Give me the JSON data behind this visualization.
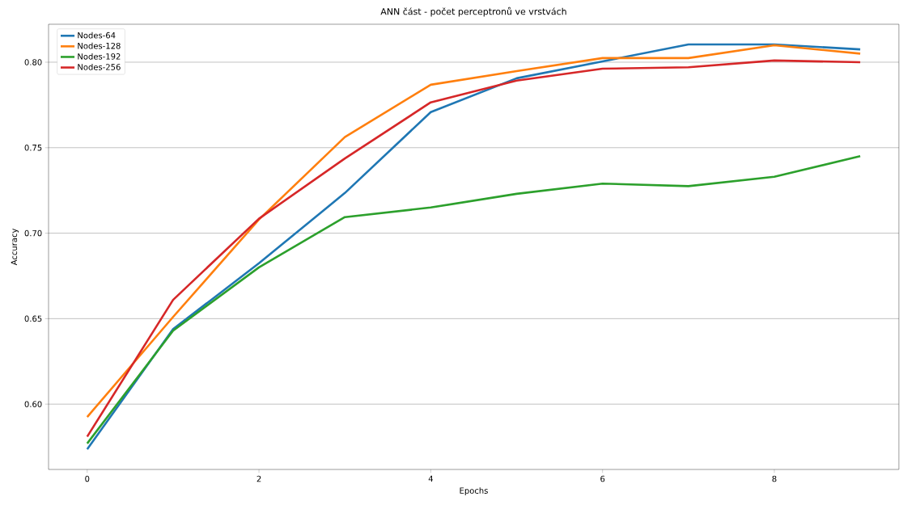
{
  "chart_data": {
    "type": "line",
    "title": "ANN část - počet perceptronů ve vrstvách",
    "xlabel": "Epochs",
    "ylabel": "Accuracy",
    "x": [
      0,
      1,
      2,
      3,
      4,
      5,
      6,
      7,
      8,
      9
    ],
    "series": [
      {
        "name": "Nodes-64",
        "color": "#1f77b4",
        "values": [
          0.5736,
          0.6439,
          0.6824,
          0.7235,
          0.7708,
          0.7906,
          0.8005,
          0.8104,
          0.8104,
          0.8075
        ]
      },
      {
        "name": "Nodes-128",
        "color": "#ff7f0e",
        "values": [
          0.5925,
          0.651,
          0.708,
          0.7562,
          0.7868,
          0.7948,
          0.8024,
          0.8024,
          0.8099,
          0.805
        ]
      },
      {
        "name": "Nodes-192",
        "color": "#2ca02c",
        "values": [
          0.577,
          0.643,
          0.68,
          0.7094,
          0.715,
          0.723,
          0.729,
          0.7275,
          0.733,
          0.745
        ]
      },
      {
        "name": "Nodes-256",
        "color": "#d62728",
        "values": [
          0.581,
          0.661,
          0.7085,
          0.7437,
          0.7765,
          0.7892,
          0.7962,
          0.797,
          0.801,
          0.8
        ]
      }
    ],
    "xlim": [
      -0.45,
      9.45
    ],
    "ylim": [
      0.5618,
      0.8222
    ],
    "xticks": [
      0,
      2,
      4,
      6,
      8
    ],
    "yticks": [
      {
        "value": 0.6,
        "label": "0.60"
      },
      {
        "value": 0.65,
        "label": "0.65"
      },
      {
        "value": 0.7,
        "label": "0.70"
      },
      {
        "value": 0.75,
        "label": "0.75"
      },
      {
        "value": 0.8,
        "label": "0.80"
      }
    ],
    "grid": "y",
    "legend": "top left",
    "line_style": "solid",
    "marker": "none"
  }
}
